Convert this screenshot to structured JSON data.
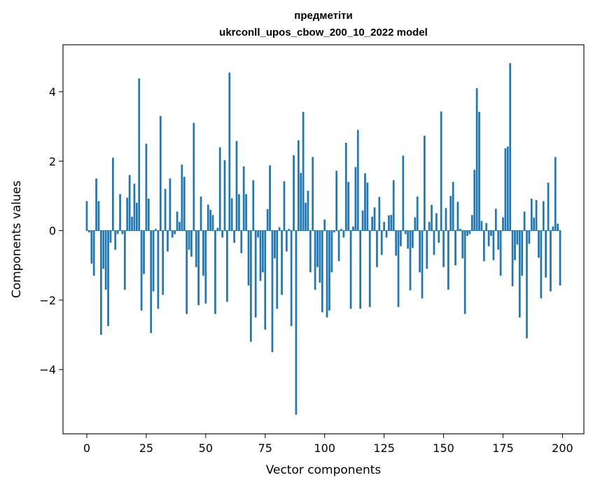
{
  "chart_data": {
    "type": "bar",
    "title": "предметіти",
    "subtitle": "ukrconll_upos_cbow_200_10_2022 model",
    "xlabel": "Vector components",
    "ylabel": "Components values",
    "xlim": [
      -10,
      209
    ],
    "ylim": [
      -5.85,
      5.35
    ],
    "xticks": [
      0,
      25,
      50,
      75,
      100,
      125,
      150,
      175,
      200
    ],
    "yticks": [
      -4,
      -2,
      0,
      2,
      4
    ],
    "color": "#1f77b4",
    "grid": false,
    "x": [
      0,
      1,
      2,
      3,
      4,
      5,
      6,
      7,
      8,
      9,
      10,
      11,
      12,
      13,
      14,
      15,
      16,
      17,
      18,
      19,
      20,
      21,
      22,
      23,
      24,
      25,
      26,
      27,
      28,
      29,
      30,
      31,
      32,
      33,
      34,
      35,
      36,
      37,
      38,
      39,
      40,
      41,
      42,
      43,
      44,
      45,
      46,
      47,
      48,
      49,
      50,
      51,
      52,
      53,
      54,
      55,
      56,
      57,
      58,
      59,
      60,
      61,
      62,
      63,
      64,
      65,
      66,
      67,
      68,
      69,
      70,
      71,
      72,
      73,
      74,
      75,
      76,
      77,
      78,
      79,
      80,
      81,
      82,
      83,
      84,
      85,
      86,
      87,
      88,
      89,
      90,
      91,
      92,
      93,
      94,
      95,
      96,
      97,
      98,
      99,
      100,
      101,
      102,
      103,
      104,
      105,
      106,
      107,
      108,
      109,
      110,
      111,
      112,
      113,
      114,
      115,
      116,
      117,
      118,
      119,
      120,
      121,
      122,
      123,
      124,
      125,
      126,
      127,
      128,
      129,
      130,
      131,
      132,
      133,
      134,
      135,
      136,
      137,
      138,
      139,
      140,
      141,
      142,
      143,
      144,
      145,
      146,
      147,
      148,
      149,
      150,
      151,
      152,
      153,
      154,
      155,
      156,
      157,
      158,
      159,
      160,
      161,
      162,
      163,
      164,
      165,
      166,
      167,
      168,
      169,
      170,
      171,
      172,
      173,
      174,
      175,
      176,
      177,
      178,
      179,
      180,
      181,
      182,
      183,
      184,
      185,
      186,
      187,
      188,
      189,
      190,
      191,
      192,
      193,
      194,
      195,
      196,
      197,
      198,
      199
    ],
    "values": [
      0.85,
      -0.05,
      -0.95,
      -1.3,
      1.5,
      0.85,
      -3.0,
      -1.1,
      -1.7,
      -2.75,
      -0.35,
      2.1,
      -0.55,
      -0.1,
      1.05,
      -0.1,
      -1.7,
      0.95,
      1.6,
      0.4,
      1.35,
      0.8,
      4.38,
      -2.3,
      -1.25,
      2.5,
      0.92,
      -2.95,
      -1.75,
      0.05,
      -2.25,
      3.3,
      -1.85,
      1.2,
      -0.6,
      1.5,
      -0.2,
      -0.1,
      0.55,
      0.25,
      1.9,
      1.55,
      -2.4,
      -0.55,
      -0.75,
      3.1,
      -1.05,
      -2.15,
      0.98,
      -1.3,
      -2.1,
      0.75,
      0.6,
      0.45,
      -2.4,
      0.08,
      2.4,
      -0.2,
      2.03,
      -2.05,
      4.55,
      0.93,
      -0.35,
      2.58,
      1.05,
      -0.65,
      1.85,
      1.05,
      -1.58,
      -3.2,
      1.45,
      -2.5,
      -0.2,
      -1.45,
      -1.2,
      -2.85,
      0.62,
      1.88,
      -3.5,
      -0.8,
      -2.25,
      0.1,
      -1.85,
      1.42,
      -0.6,
      0.05,
      -2.75,
      2.17,
      -5.3,
      2.6,
      1.66,
      3.42,
      0.8,
      1.15,
      -1.2,
      2.12,
      -1.7,
      -1.05,
      -1.5,
      -2.35,
      0.32,
      -2.5,
      -2.3,
      -1.2,
      -0.05,
      1.72,
      -0.88,
      0.05,
      -0.2,
      2.53,
      1.4,
      -2.25,
      0.12,
      1.83,
      2.9,
      -2.25,
      0.58,
      1.65,
      1.38,
      -2.2,
      0.4,
      0.67,
      -1.05,
      0.97,
      -0.7,
      0.25,
      -0.2,
      0.44,
      0.45,
      1.45,
      -0.72,
      -2.2,
      -0.45,
      2.16,
      -0.1,
      -0.52,
      -1.72,
      -0.5,
      0.38,
      0.98,
      -1.2,
      -1.95,
      2.73,
      -1.1,
      0.25,
      0.74,
      -0.7,
      0.5,
      -0.35,
      3.43,
      -1.05,
      0.65,
      -1.7,
      1.0,
      1.4,
      -1.0,
      0.83,
      0.05,
      -0.8,
      -2.4,
      -0.15,
      -0.1,
      0.45,
      1.75,
      4.1,
      3.42,
      0.28,
      -0.88,
      0.22,
      -0.45,
      -0.15,
      -0.85,
      0.63,
      -0.55,
      -1.3,
      0.38,
      2.37,
      2.42,
      4.82,
      -1.6,
      -0.85,
      -0.4,
      -2.5,
      -1.3,
      0.55,
      -3.1,
      -0.38,
      0.92,
      0.37,
      0.88,
      -0.78,
      -1.95,
      0.85,
      -1.35,
      1.38,
      -1.75,
      0.12,
      2.12,
      0.2,
      -1.58
    ]
  }
}
